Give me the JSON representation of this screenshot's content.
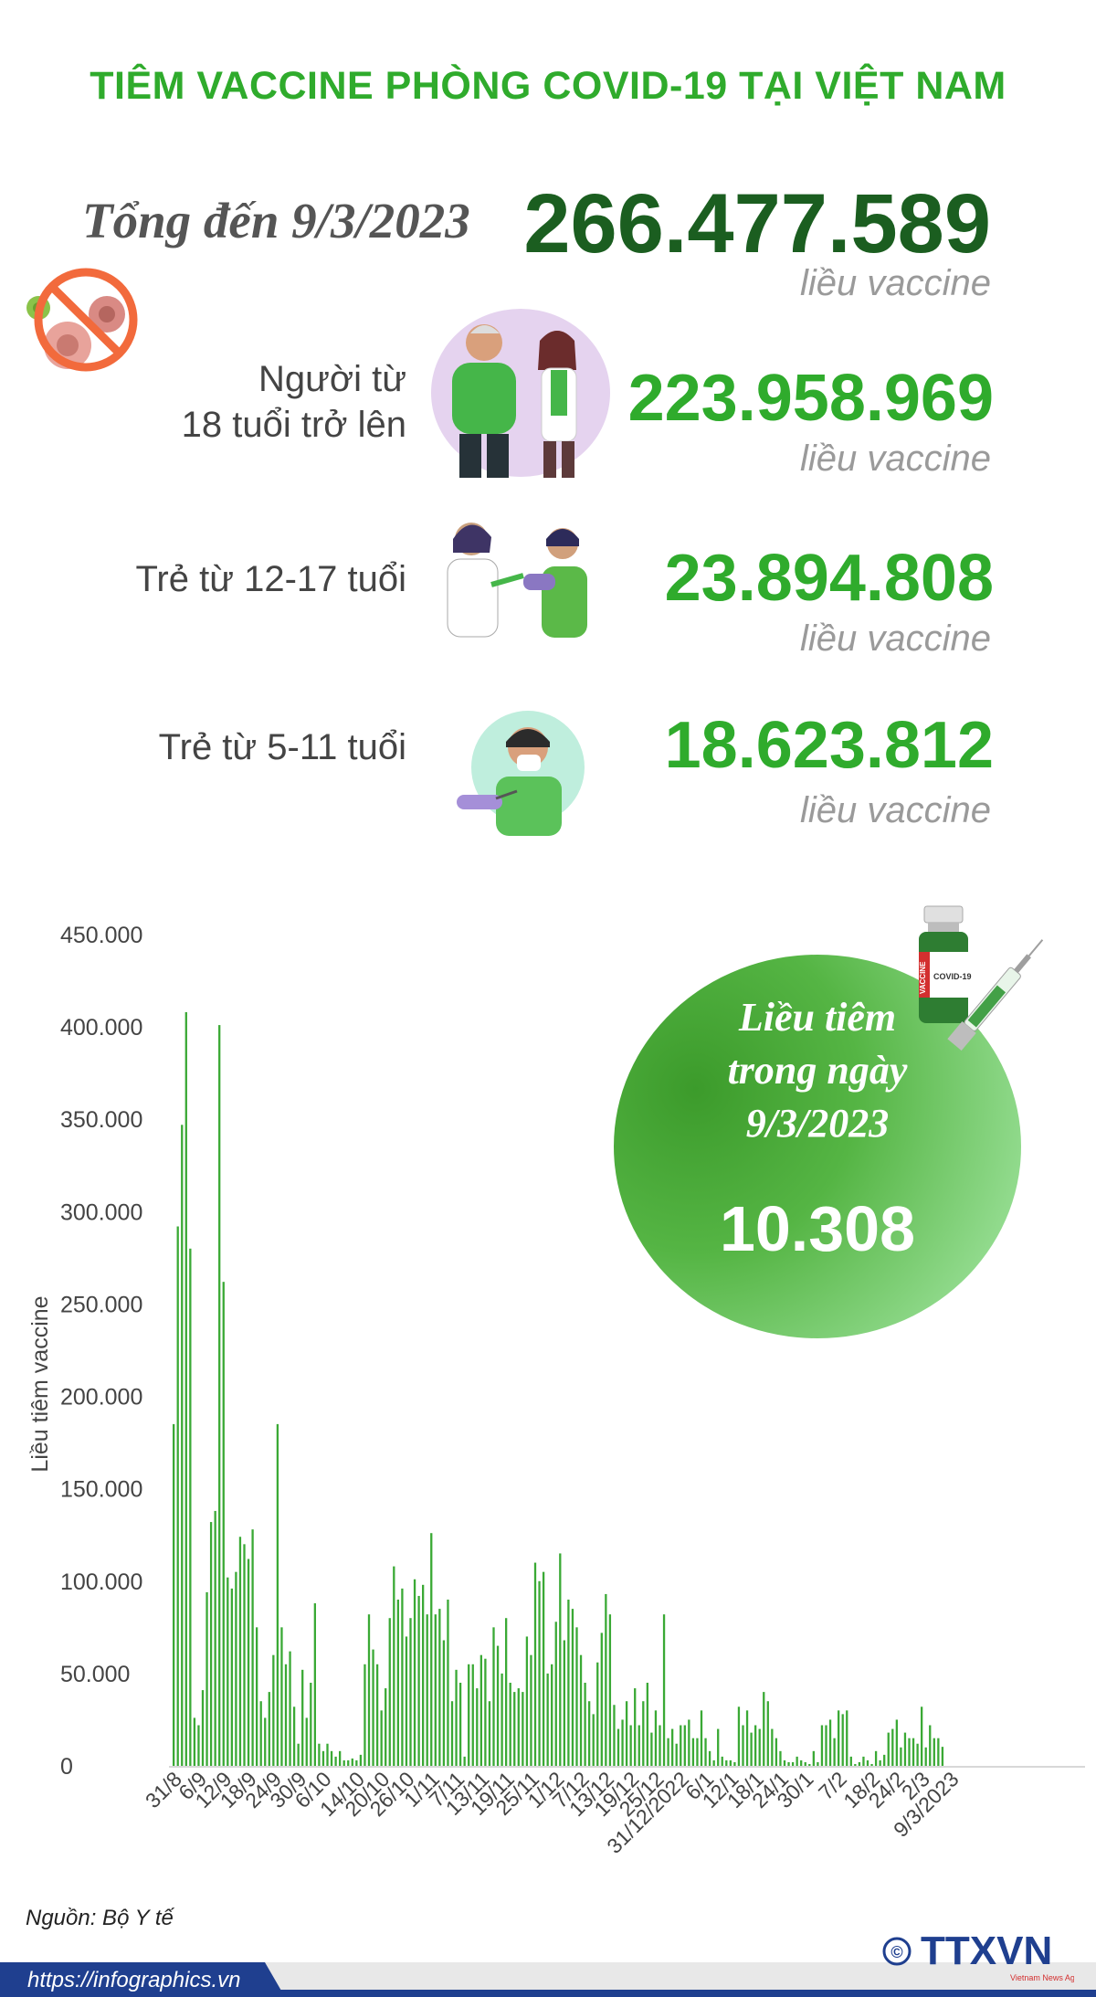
{
  "header": {
    "title": "TIÊM VACCINE PHÒNG COVID-19 TẠI VIỆT NAM"
  },
  "summary": {
    "total_label": "Tổng đến 9/3/2023",
    "total_value": "266.477.589",
    "unit": "liều vaccine",
    "groups": [
      {
        "label_line1": "Người từ",
        "label_line2": "18 tuổi trở lên",
        "value": "223.958.969",
        "unit": "liều vaccine"
      },
      {
        "label_line1": "Trẻ từ 12-17 tuổi",
        "label_line2": "",
        "value": "23.894.808",
        "unit": "liều vaccine"
      },
      {
        "label_line1": "Trẻ từ 5-11 tuổi",
        "label_line2": "",
        "value": "18.623.812",
        "unit": "liều vaccine"
      }
    ]
  },
  "daily": {
    "line1": "Liều tiêm",
    "line2": "trong ngày",
    "line3": "9/3/2023",
    "value": "10.308",
    "vial_label": "VACCINE",
    "vial_sub": "COVID-19"
  },
  "colors": {
    "brand_green": "#2fab2c",
    "dark_green": "#1b5e20",
    "bar_green": "#3aa935",
    "footer_blue": "#1f3f8f"
  },
  "icons": [
    "no-virus-icon",
    "adult-vaccination-illustration",
    "teen-vaccination-illustration",
    "child-vaccination-illustration",
    "vaccine-vial-icon",
    "syringe-icon",
    "ttxvn-logo"
  ],
  "chart_data": {
    "type": "bar",
    "title": "",
    "xlabel": "",
    "ylabel": "Liều tiêm vaccine",
    "ylim": [
      0,
      450000
    ],
    "yticks": [
      0,
      50000,
      100000,
      150000,
      200000,
      250000,
      300000,
      350000,
      400000,
      450000
    ],
    "ytick_labels": [
      "0",
      "50.000",
      "100.000",
      "150.000",
      "200.000",
      "250.000",
      "300.000",
      "350.000",
      "400.000",
      "450.000"
    ],
    "grid": false,
    "legend": "none",
    "x_labels": [
      {
        "label": "31/8",
        "index": 2
      },
      {
        "label": "6/9",
        "index": 8
      },
      {
        "label": "12/9",
        "index": 14
      },
      {
        "label": "18/9",
        "index": 20
      },
      {
        "label": "24/9",
        "index": 26
      },
      {
        "label": "30/9",
        "index": 32
      },
      {
        "label": "6/10",
        "index": 38
      },
      {
        "label": "14/10",
        "index": 46
      },
      {
        "label": "20/10",
        "index": 52
      },
      {
        "label": "26/10",
        "index": 58
      },
      {
        "label": "1/11",
        "index": 64
      },
      {
        "label": "7/11",
        "index": 70
      },
      {
        "label": "13/11",
        "index": 76
      },
      {
        "label": "19/11",
        "index": 82
      },
      {
        "label": "25/11",
        "index": 88
      },
      {
        "label": "1/12",
        "index": 94
      },
      {
        "label": "7/12",
        "index": 100
      },
      {
        "label": "13/12",
        "index": 106
      },
      {
        "label": "19/12",
        "index": 112
      },
      {
        "label": "25/12",
        "index": 118
      },
      {
        "label": "31/12/2022",
        "index": 124
      },
      {
        "label": "6/1",
        "index": 130
      },
      {
        "label": "12/1",
        "index": 136
      },
      {
        "label": "18/1",
        "index": 142
      },
      {
        "label": "24/1",
        "index": 148
      },
      {
        "label": "30/1",
        "index": 154
      },
      {
        "label": "7/2",
        "index": 162
      },
      {
        "label": "18/2",
        "index": 170
      },
      {
        "label": "24/2",
        "index": 176
      },
      {
        "label": "2/3",
        "index": 182
      },
      {
        "label": "9/3/2023",
        "index": 189
      }
    ],
    "values": [
      185000,
      292000,
      347000,
      408000,
      280000,
      26000,
      22000,
      41000,
      94000,
      132000,
      138000,
      401000,
      262000,
      102000,
      96000,
      105000,
      124000,
      120000,
      112000,
      128000,
      75000,
      35000,
      26000,
      40000,
      60000,
      185000,
      75000,
      55000,
      62000,
      32000,
      12000,
      52000,
      26000,
      45000,
      88000,
      12000,
      8000,
      12000,
      8000,
      5000,
      8000,
      3000,
      3000,
      4000,
      3000,
      6000,
      55000,
      82000,
      63000,
      55000,
      30000,
      42000,
      80000,
      108000,
      90000,
      96000,
      70000,
      80000,
      101000,
      92000,
      98000,
      82000,
      126000,
      82000,
      85000,
      68000,
      90000,
      35000,
      52000,
      45000,
      5000,
      55000,
      55000,
      42000,
      60000,
      58000,
      35000,
      75000,
      65000,
      50000,
      80000,
      45000,
      40000,
      42000,
      40000,
      70000,
      60000,
      110000,
      100000,
      105000,
      50000,
      55000,
      78000,
      115000,
      68000,
      90000,
      85000,
      75000,
      60000,
      45000,
      35000,
      28000,
      56000,
      72000,
      93000,
      82000,
      33000,
      20000,
      25000,
      35000,
      22000,
      42000,
      22000,
      35000,
      45000,
      18000,
      30000,
      22000,
      82000,
      15000,
      20000,
      12000,
      22000,
      22000,
      25000,
      15000,
      15000,
      30000,
      15000,
      8000,
      3000,
      20000,
      5000,
      3000,
      3000,
      2000,
      32000,
      22000,
      30000,
      18000,
      22000,
      20000,
      40000,
      35000,
      20000,
      15000,
      8000,
      3000,
      2000,
      2000,
      5000,
      3000,
      2000,
      1000,
      8000,
      2000,
      22000,
      22000,
      25000,
      15000,
      30000,
      28000,
      30000,
      5000,
      1000,
      2000,
      5000,
      3000,
      1000,
      8000,
      3000,
      6000,
      18000,
      20000,
      25000,
      10000,
      18000,
      15000,
      15000,
      12000,
      32000,
      10000,
      22000,
      15000,
      15000,
      10308
    ]
  },
  "footer": {
    "source": "Nguồn: Bộ Y tế",
    "url": "https://infographics.vn",
    "logo_text": "TTXVN",
    "logo_sub": "Vietnam News Agency",
    "logo_mark": "©"
  }
}
